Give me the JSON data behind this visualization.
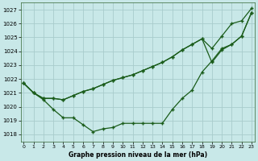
{
  "title": "Graphe pression niveau de la mer (hPa)",
  "bg_color": "#c8e8e8",
  "grid_color": "#a8cccc",
  "line_color": "#1a5c1a",
  "xlim": [
    -0.3,
    23.3
  ],
  "ylim": [
    1017.5,
    1027.5
  ],
  "yticks": [
    1018,
    1019,
    1020,
    1021,
    1022,
    1023,
    1024,
    1025,
    1026,
    1027
  ],
  "xticks": [
    0,
    1,
    2,
    3,
    4,
    5,
    6,
    7,
    8,
    9,
    10,
    11,
    12,
    13,
    14,
    15,
    16,
    17,
    18,
    19,
    20,
    21,
    22,
    23
  ],
  "series": [
    [
      1021.7,
      1021.0,
      1020.6,
      1020.6,
      1020.5,
      1020.8,
      1021.1,
      1021.3,
      1021.6,
      1021.9,
      1022.1,
      1022.3,
      1022.6,
      1022.9,
      1023.2,
      1023.6,
      1024.1,
      1024.5,
      1024.9,
      1024.2,
      1025.1,
      1026.0,
      1026.2,
      1027.1
    ],
    [
      1021.7,
      1021.0,
      1020.6,
      1020.6,
      1020.5,
      1020.8,
      1021.1,
      1021.3,
      1021.6,
      1021.9,
      1022.1,
      1022.3,
      1022.6,
      1022.9,
      1023.2,
      1023.6,
      1024.1,
      1024.5,
      1024.9,
      1023.2,
      1024.1,
      1024.5,
      1025.1,
      1026.8
    ],
    [
      1021.7,
      1021.0,
      1020.5,
      1019.8,
      1019.2,
      1019.2,
      1018.7,
      1018.2,
      1018.4,
      1018.5,
      1018.8,
      1018.8,
      1018.8,
      1018.8,
      1018.8,
      1019.8,
      1020.6,
      1021.2,
      1022.5,
      1023.3,
      1024.2,
      1024.5,
      1025.1,
      1026.8
    ]
  ]
}
